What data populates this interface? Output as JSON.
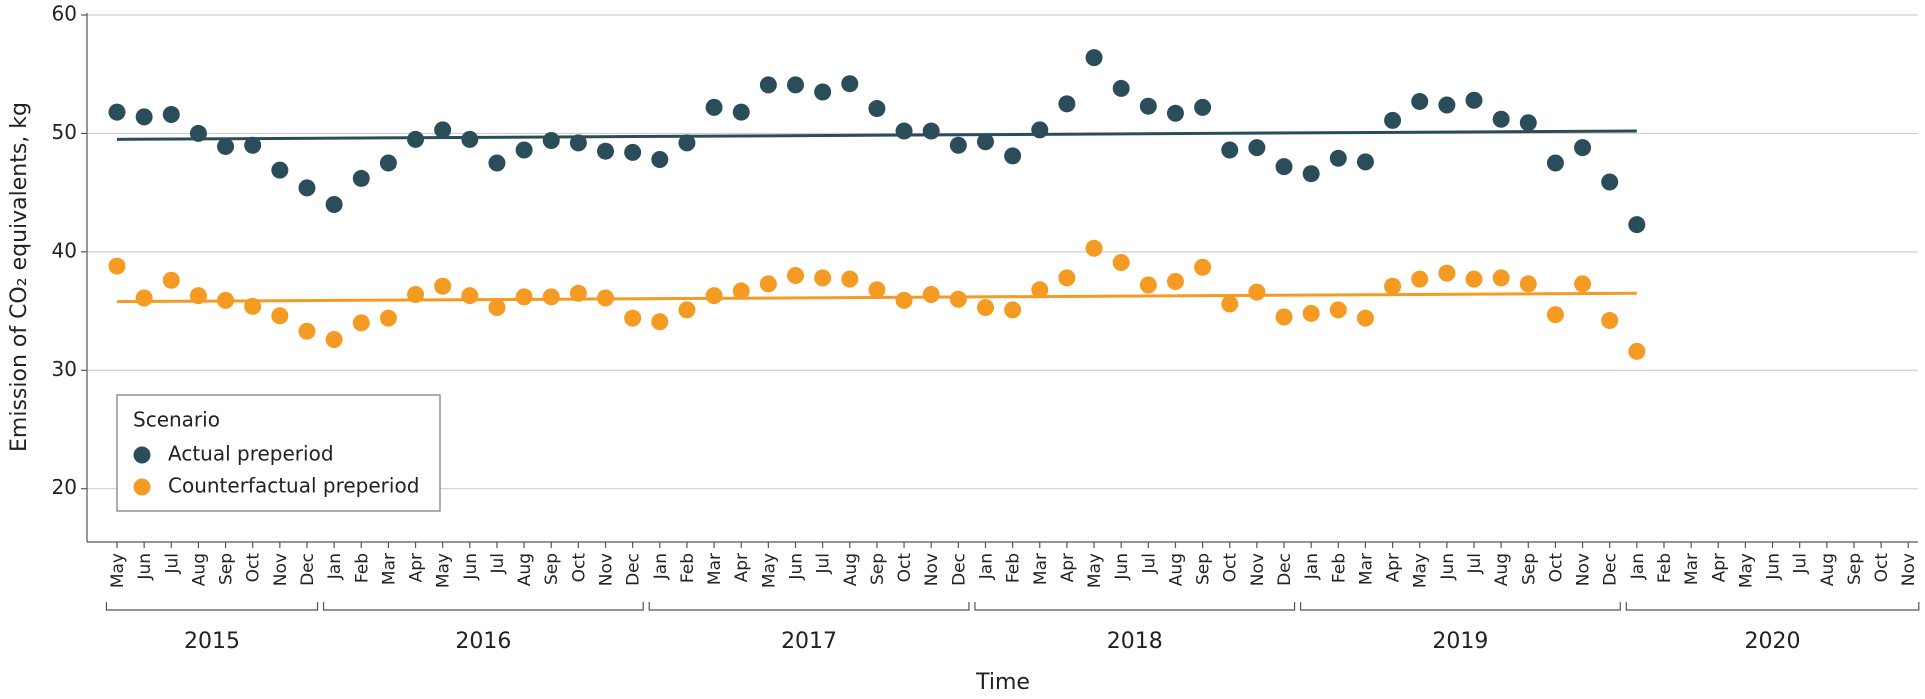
{
  "chart_data": {
    "type": "scatter",
    "ylabel": "Emission of CO₂ equivalents, kg",
    "xlabel": "Time",
    "categories": [
      "May",
      "Jun",
      "Jul",
      "Aug",
      "Sep",
      "Oct",
      "Nov",
      "Dec",
      "Jan",
      "Feb",
      "Mar",
      "Apr",
      "May",
      "Jun",
      "Jul",
      "Aug",
      "Sep",
      "Oct",
      "Nov",
      "Dec",
      "Jan",
      "Feb",
      "Mar",
      "Apr",
      "May",
      "Jun",
      "Jul",
      "Aug",
      "Sep",
      "Oct",
      "Nov",
      "Dec",
      "Jan",
      "Feb",
      "Mar",
      "Apr",
      "May",
      "Jun",
      "Jul",
      "Aug",
      "Sep",
      "Oct",
      "Nov",
      "Dec",
      "Jan",
      "Feb",
      "Mar",
      "Apr",
      "May",
      "Jun",
      "Jul",
      "Aug",
      "Sep",
      "Oct",
      "Nov",
      "Dec",
      "Jan",
      "Feb",
      "Mar",
      "Apr",
      "May",
      "Jun",
      "Jul",
      "Aug",
      "Sep",
      "Oct",
      "Nov"
    ],
    "years": [
      "2015",
      "2016",
      "2017",
      "2018",
      "2019",
      "2020"
    ],
    "ylim": [
      15.5,
      60
    ],
    "yticks": [
      20,
      30,
      40,
      50,
      60
    ],
    "grid": true,
    "legend_title": "Scenario",
    "legend_position": "lower left",
    "series": [
      {
        "name": "Actual preperiod",
        "color": "#2b4d5a",
        "trend": [
          49.5,
          50.2
        ],
        "values": [
          51.8,
          51.4,
          51.6,
          50.0,
          48.9,
          49.0,
          46.9,
          45.4,
          44.0,
          46.2,
          47.5,
          49.5,
          50.3,
          49.5,
          47.5,
          48.6,
          49.4,
          49.2,
          48.5,
          48.4,
          47.8,
          49.2,
          52.2,
          51.8,
          54.1,
          54.1,
          53.5,
          54.2,
          52.1,
          50.2,
          50.2,
          49.0,
          49.3,
          48.1,
          50.3,
          52.5,
          56.4,
          53.8,
          52.3,
          51.7,
          52.2,
          48.6,
          48.8,
          47.2,
          46.6,
          47.9,
          47.6,
          51.1,
          52.7,
          52.4,
          52.8,
          51.2,
          50.9,
          47.5,
          48.8,
          45.9,
          42.3,
          null,
          null,
          null,
          null,
          null,
          null,
          null,
          null,
          null,
          null
        ]
      },
      {
        "name": "Counterfactual preperiod",
        "color": "#f59a23",
        "trend": [
          35.8,
          36.5
        ],
        "values": [
          38.8,
          36.1,
          37.6,
          36.3,
          35.9,
          35.4,
          34.6,
          33.3,
          32.6,
          34.0,
          34.4,
          36.4,
          37.1,
          36.3,
          35.3,
          36.2,
          36.2,
          36.5,
          36.1,
          34.4,
          34.1,
          35.1,
          36.3,
          36.7,
          37.3,
          38.0,
          37.8,
          37.7,
          36.8,
          35.9,
          36.4,
          36.0,
          35.3,
          35.1,
          36.8,
          37.8,
          40.3,
          39.1,
          37.2,
          37.5,
          38.7,
          35.6,
          36.6,
          34.5,
          34.8,
          35.1,
          34.4,
          37.1,
          37.7,
          38.2,
          37.7,
          37.8,
          37.3,
          34.7,
          37.3,
          34.2,
          31.6,
          null,
          null,
          null,
          null,
          null,
          null,
          null,
          null,
          null,
          null
        ]
      }
    ]
  }
}
